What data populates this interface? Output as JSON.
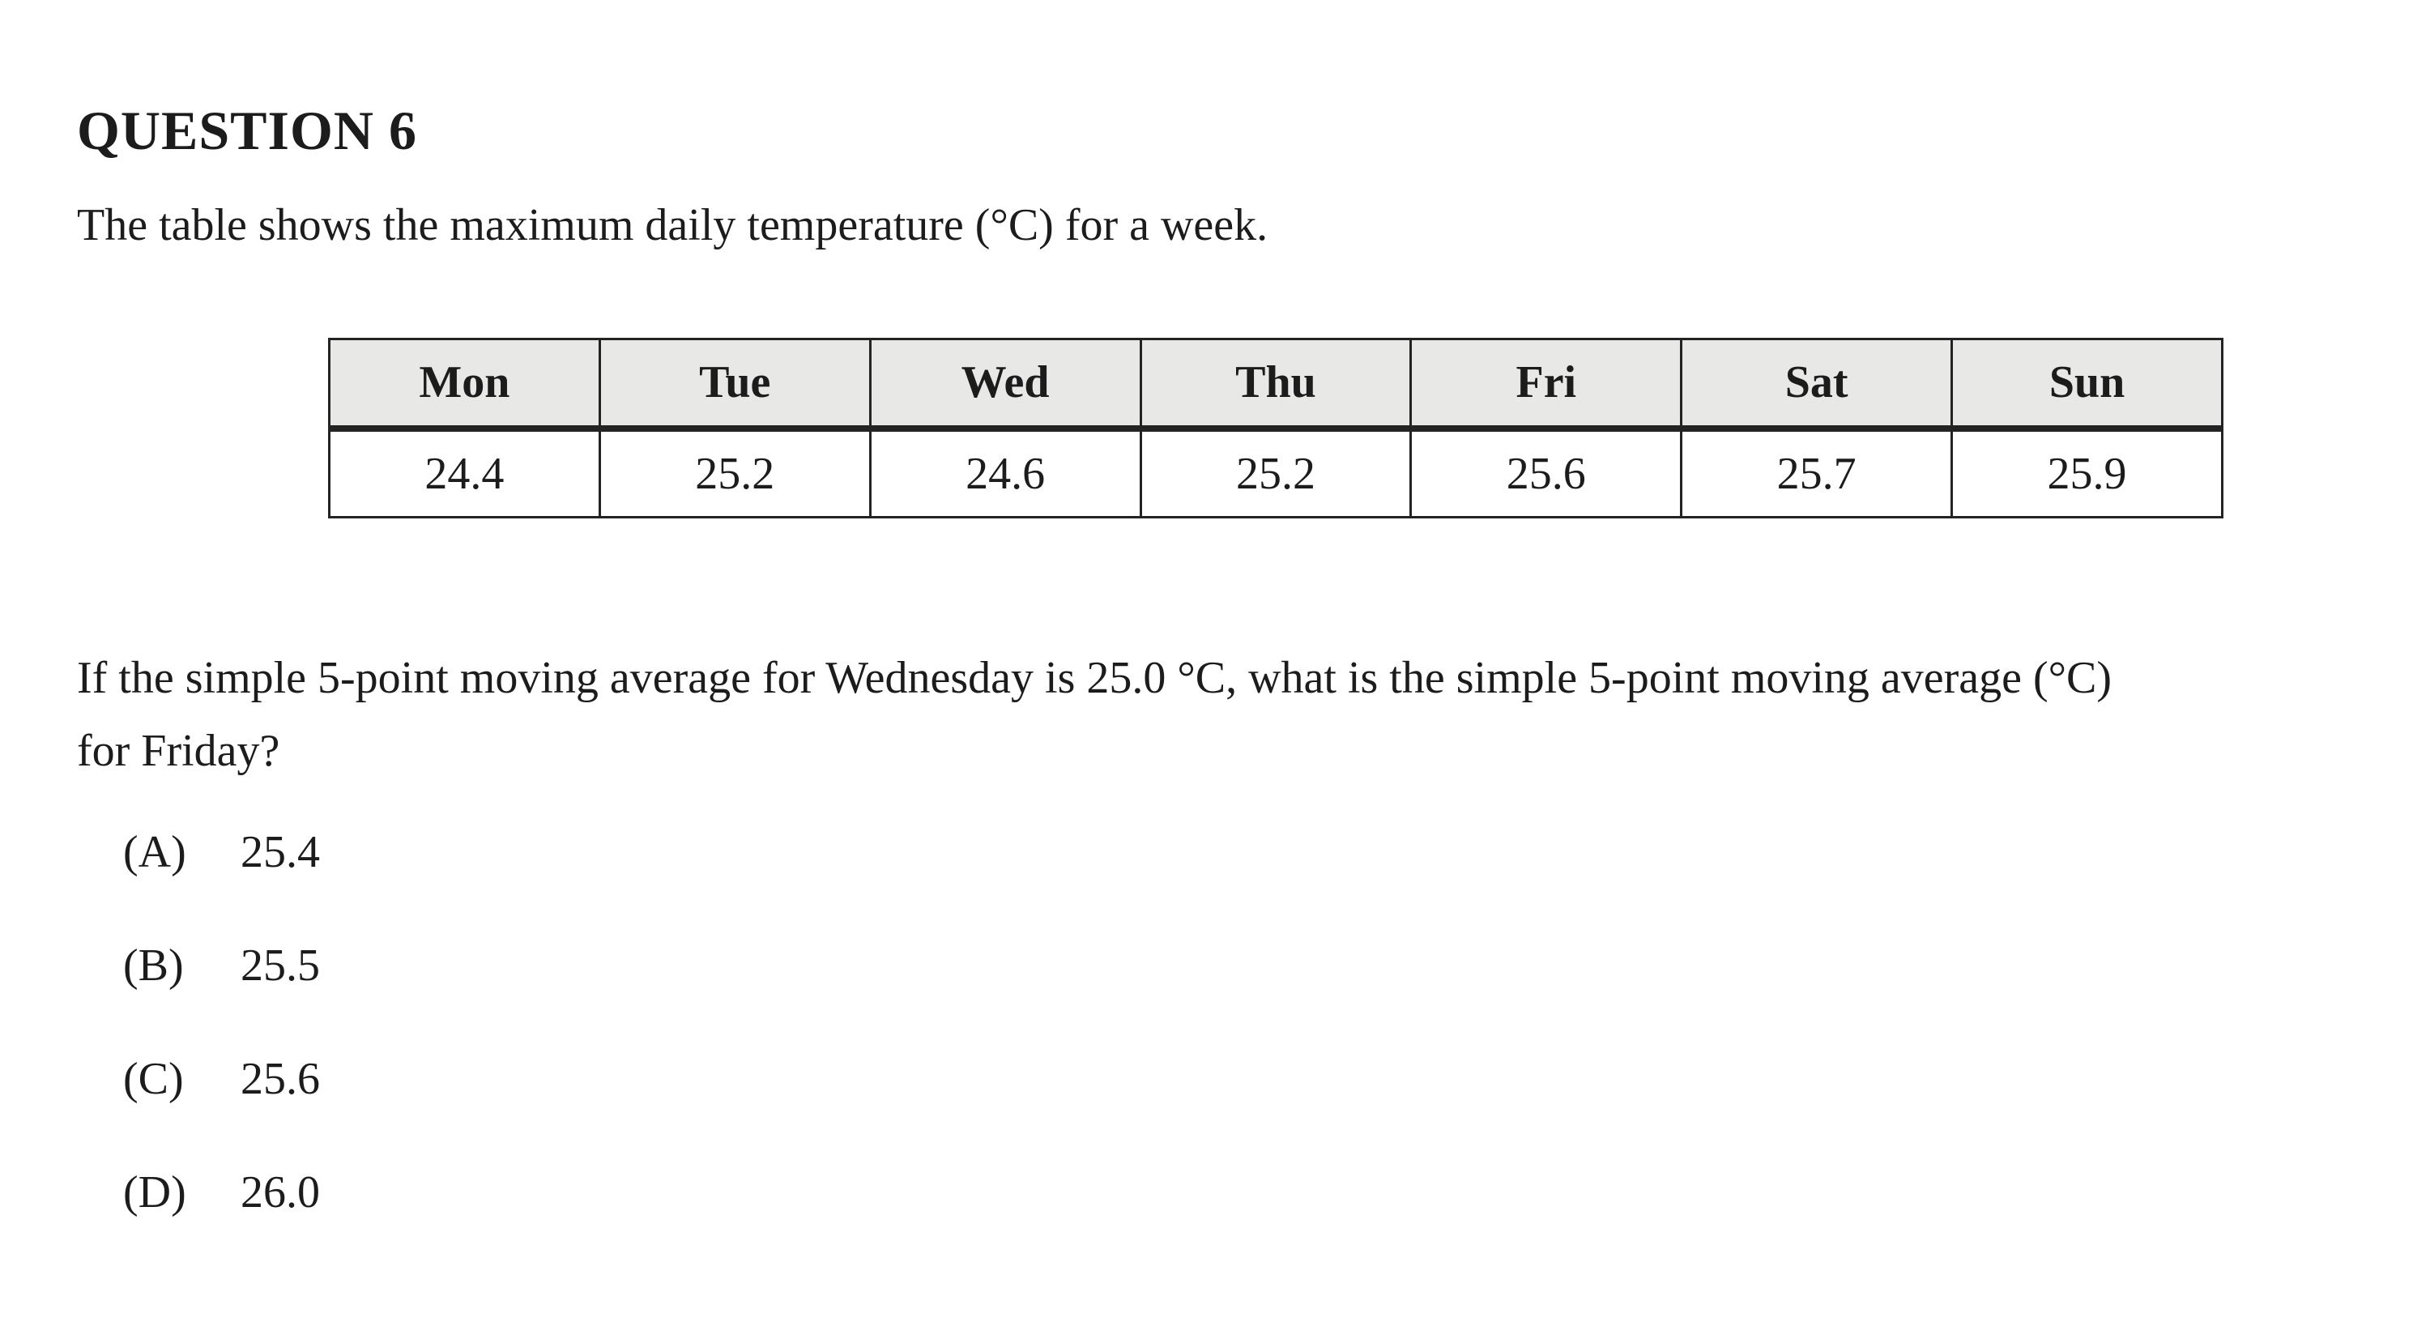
{
  "page": {
    "background": "#ffffff",
    "text_color": "#1c1c1c"
  },
  "question": {
    "number_label": "QUESTION 6",
    "intro": "The table shows the maximum daily temperature (°C) for a week.",
    "prompt_line1": "If the simple 5-point moving average for Wednesday is 25.0 °C, what is the simple 5-point moving average (°C)",
    "prompt_line2": "for Friday?"
  },
  "table": {
    "header_bg": "#e8e8e7",
    "border_color": "#232323",
    "headers": [
      "Mon",
      "Tue",
      "Wed",
      "Thu",
      "Fri",
      "Sat",
      "Sun"
    ],
    "values": [
      "24.4",
      "25.2",
      "24.6",
      "25.2",
      "25.6",
      "25.7",
      "25.9"
    ]
  },
  "options": [
    {
      "label": "(A)",
      "value": "25.4"
    },
    {
      "label": "(B)",
      "value": "25.5"
    },
    {
      "label": "(C)",
      "value": "25.6"
    },
    {
      "label": "(D)",
      "value": "26.0"
    }
  ],
  "chart_data": {
    "type": "table",
    "title": "Maximum daily temperature (°C) for a week",
    "categories": [
      "Mon",
      "Tue",
      "Wed",
      "Thu",
      "Fri",
      "Sat",
      "Sun"
    ],
    "values": [
      24.4,
      25.2,
      24.6,
      25.2,
      25.6,
      25.7,
      25.9
    ]
  }
}
